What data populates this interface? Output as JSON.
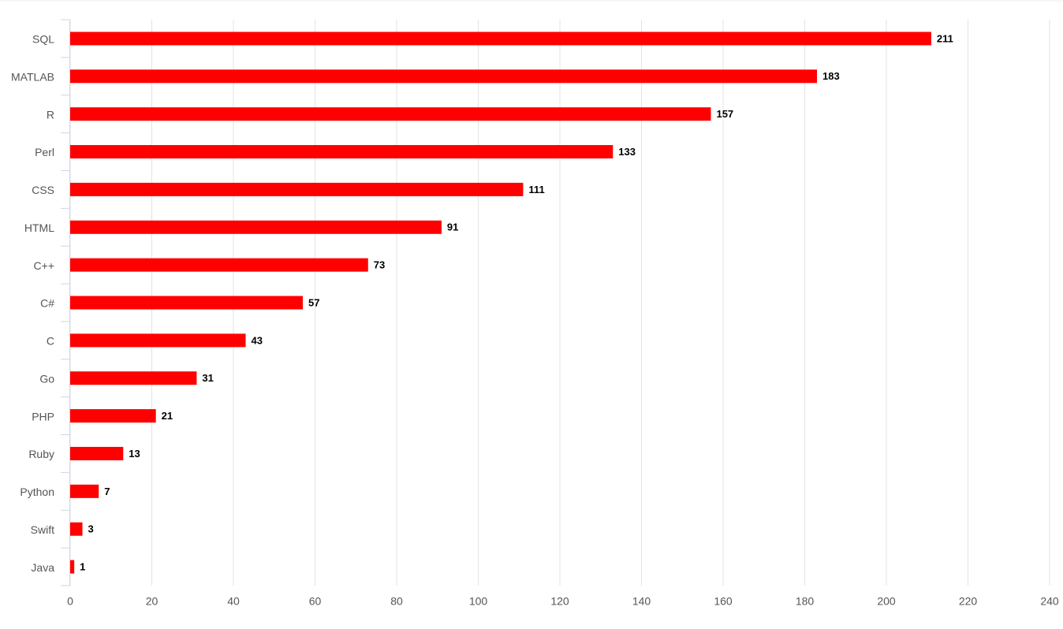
{
  "chart_data": {
    "type": "bar",
    "orientation": "horizontal",
    "categories": [
      "SQL",
      "MATLAB",
      "R",
      "Perl",
      "CSS",
      "HTML",
      "C++",
      "C#",
      "C",
      "Go",
      "PHP",
      "Ruby",
      "Python",
      "Swift",
      "Java"
    ],
    "values": [
      211,
      183,
      157,
      133,
      111,
      91,
      73,
      57,
      43,
      31,
      21,
      13,
      7,
      3,
      1
    ],
    "color": "#ff0000",
    "xlim": [
      0,
      240
    ],
    "xticks": [
      0,
      20,
      40,
      60,
      80,
      100,
      120,
      140,
      160,
      180,
      200,
      220,
      240
    ],
    "grid": true,
    "data_labels": true
  }
}
